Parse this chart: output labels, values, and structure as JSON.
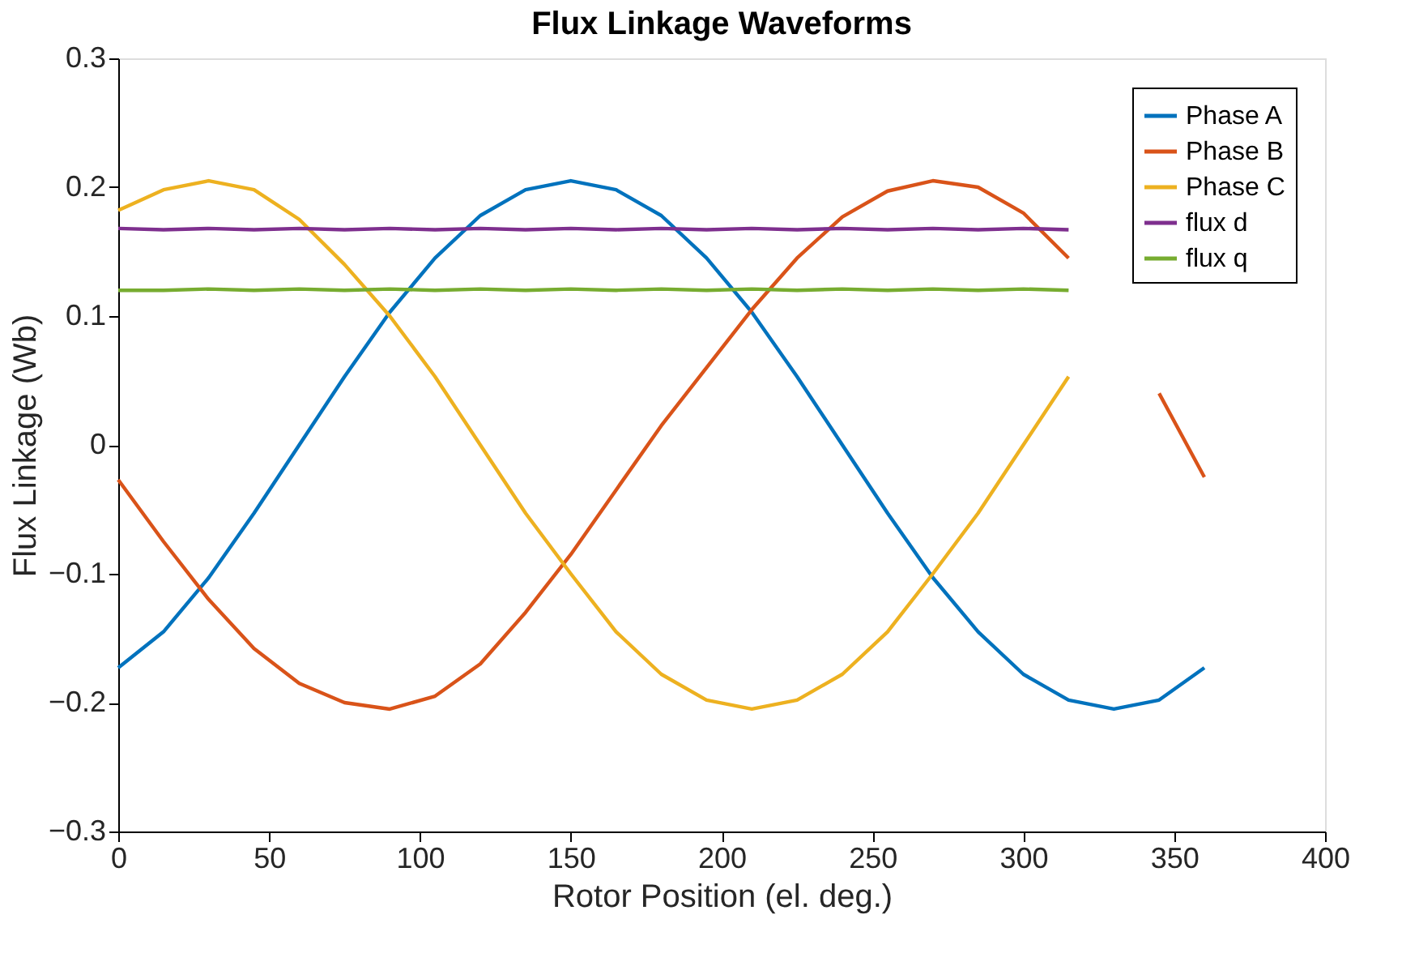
{
  "chart_data": {
    "type": "line",
    "title": "Flux Linkage Waveforms",
    "xlabel": "Rotor Position (el. deg.)",
    "ylabel": "Flux Linkage (Wb)",
    "x": [
      0,
      15,
      30,
      45,
      60,
      75,
      90,
      105,
      120,
      135,
      150,
      165,
      180,
      195,
      210,
      225,
      240,
      255,
      270,
      285,
      300,
      315,
      330,
      345,
      360
    ],
    "xlim": [
      0,
      400
    ],
    "xticks": [
      0,
      50,
      100,
      150,
      200,
      250,
      300,
      350,
      400
    ],
    "ylim": [
      -0.3,
      0.3
    ],
    "yticks": [
      -0.3,
      -0.2,
      -0.1,
      0,
      0.1,
      0.2,
      0.3
    ],
    "grid": false,
    "legend": "top right",
    "marker": "none",
    "line_style": "solid",
    "series": [
      {
        "name": "Phase A",
        "color": "#0072bd",
        "values": [
          -0.173,
          -0.145,
          -0.103,
          -0.053,
          0.0,
          0.053,
          0.103,
          0.145,
          0.178,
          0.198,
          0.205,
          0.198,
          0.178,
          0.145,
          0.103,
          0.053,
          0.0,
          -0.053,
          -0.103,
          -0.145,
          -0.178,
          -0.198,
          -0.205,
          -0.198,
          -0.173
        ]
      },
      {
        "name": "Phase B",
        "color": "#d95319",
        "values": [
          -0.027,
          -0.075,
          -0.12,
          -0.158,
          -0.185,
          -0.2,
          -0.205,
          -0.195,
          -0.17,
          -0.13,
          -0.085,
          -0.035,
          0.015,
          0.06,
          0.105,
          0.145,
          0.177,
          0.197,
          0.205,
          0.2,
          0.18,
          0.145,
          null,
          0.04,
          -0.025
        ]
      },
      {
        "name": "Phase C",
        "color": "#edb120",
        "values": [
          0.182,
          0.198,
          0.205,
          0.198,
          0.175,
          0.14,
          0.1,
          0.053,
          0.0,
          -0.053,
          -0.1,
          -0.145,
          -0.178,
          -0.198,
          -0.205,
          -0.198,
          -0.178,
          -0.145,
          -0.1,
          -0.053,
          0.0,
          0.053,
          null,
          null,
          null
        ]
      },
      {
        "name": "flux d",
        "color": "#7e2f8e",
        "values": [
          0.168,
          0.167,
          0.168,
          0.167,
          0.168,
          0.167,
          0.168,
          0.167,
          0.168,
          0.167,
          0.168,
          0.167,
          0.168,
          0.167,
          0.168,
          0.167,
          0.168,
          0.167,
          0.168,
          0.167,
          0.168,
          0.167,
          null,
          null,
          null
        ]
      },
      {
        "name": "flux q",
        "color": "#77ac30",
        "values": [
          0.12,
          0.12,
          0.121,
          0.12,
          0.121,
          0.12,
          0.121,
          0.12,
          0.121,
          0.12,
          0.121,
          0.12,
          0.121,
          0.12,
          0.121,
          0.12,
          0.121,
          0.12,
          0.121,
          0.12,
          0.121,
          0.12,
          null,
          null,
          null
        ]
      }
    ]
  }
}
